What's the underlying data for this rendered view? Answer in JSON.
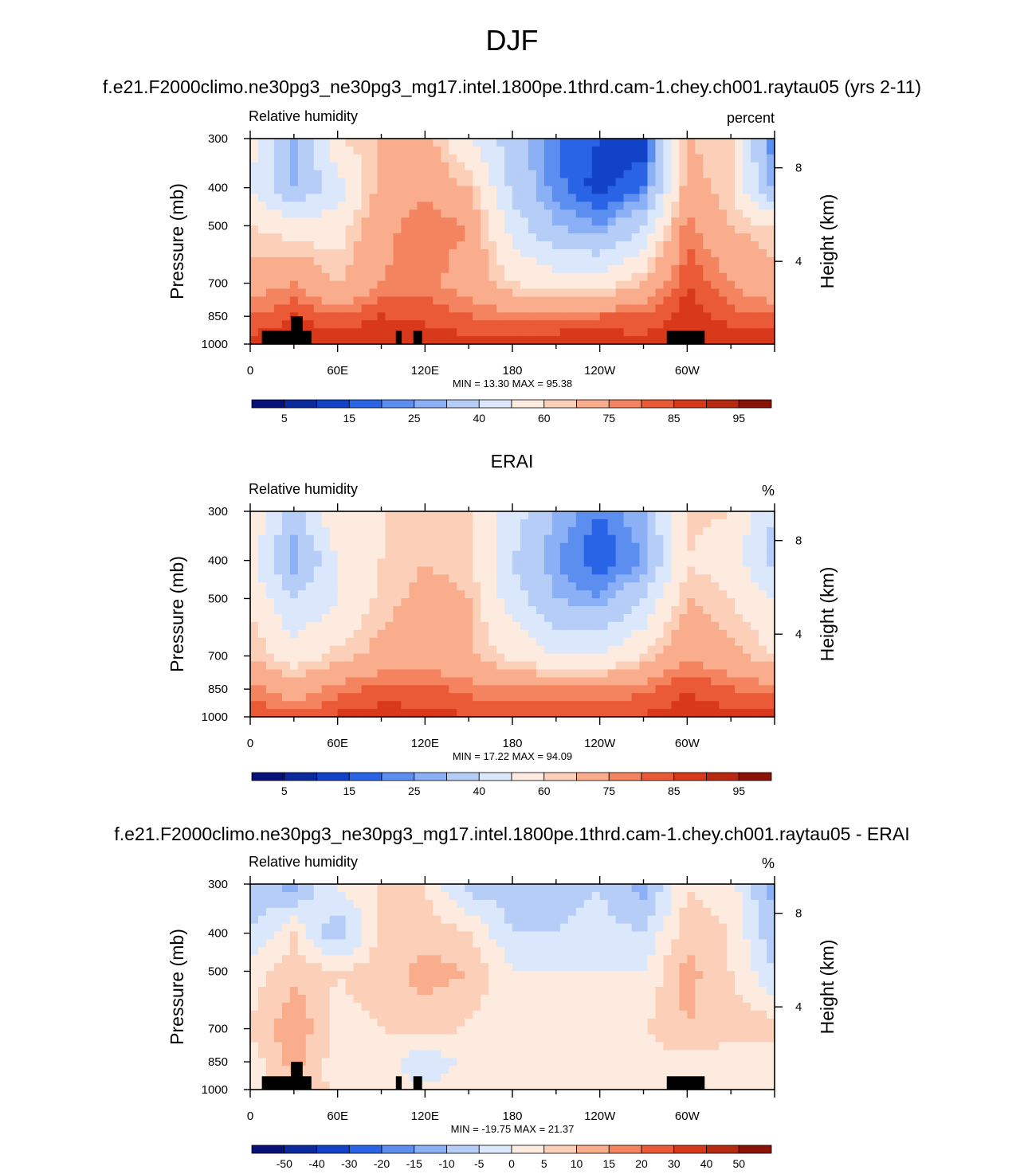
{
  "page": {
    "title": "DJF"
  },
  "panels": [
    {
      "id": "model",
      "heading": "f.e21.F2000climo.ne30pg3_ne30pg3_mg17.intel.1800pe.1thrd.cam-1.chey.ch001.raytau05 (yrs 2-11)",
      "left_label": "Relative humidity",
      "right_label": "percent",
      "stats": "MIN =  13.30  MAX =  95.38",
      "palette": "full",
      "colorbar_labels": [
        "5",
        "15",
        "25",
        "40",
        "60",
        "75",
        "85",
        "95"
      ]
    },
    {
      "id": "obs",
      "heading": "ERAI",
      "left_label": "Relative humidity",
      "right_label": "%",
      "stats": "MIN =  17.22  MAX =  94.09",
      "palette": "full",
      "colorbar_labels": [
        "5",
        "15",
        "25",
        "40",
        "60",
        "75",
        "85",
        "95"
      ]
    },
    {
      "id": "diff",
      "heading": "f.e21.F2000climo.ne30pg3_ne30pg3_mg17.intel.1800pe.1thrd.cam-1.chey.ch001.raytau05 - ERAI",
      "left_label": "Relative humidity",
      "right_label": "%",
      "stats": "MIN = -19.75  MAX =  21.37",
      "palette": "full",
      "colorbar_labels": [
        "-50",
        "-40",
        "-30",
        "-20",
        "-15",
        "-10",
        "-5",
        "0",
        "5",
        "10",
        "15",
        "20",
        "30",
        "40",
        "50"
      ]
    }
  ],
  "axes": {
    "ylabel": "Pressure (mb)",
    "ylabel_right": "Height (km)",
    "pressure_ticks": [
      "300",
      "400",
      "500",
      "700",
      "850",
      "1000"
    ],
    "height_ticks": [
      "8",
      "4"
    ],
    "lon_ticks": [
      "0",
      "60E",
      "120E",
      "180",
      "120W",
      "60W"
    ]
  },
  "colors": {
    "palette_full": [
      "#08107a",
      "#0a2a9e",
      "#1242c8",
      "#2a64e6",
      "#5c8ef0",
      "#8cb0f5",
      "#b6cdf7",
      "#dbe8fb",
      "#fdebe0",
      "#fcd0b8",
      "#f9ad8c",
      "#f4845f",
      "#ea5a36",
      "#d8391a",
      "#b72a10",
      "#8a1206"
    ]
  },
  "chart_data": [
    {
      "type": "heatmap",
      "title": "f.e21.F2000climo.ne30pg3_ne30pg3_mg17.intel.1800pe.1thrd.cam-1.chey.ch001.raytau05 (yrs 2-11)",
      "variable": "Relative humidity",
      "units": "percent",
      "xlabel": "",
      "ylabel": "Pressure (mb)",
      "ylabel_right": "Height (km)",
      "x": [
        0,
        30,
        60,
        90,
        120,
        150,
        180,
        210,
        240,
        270,
        300,
        330,
        360
      ],
      "y": [
        300,
        400,
        500,
        700,
        850,
        1000
      ],
      "values": [
        [
          55,
          25,
          60,
          65,
          70,
          50,
          35,
          20,
          15,
          10,
          65,
          62,
          20
        ],
        [
          50,
          30,
          45,
          68,
          72,
          65,
          38,
          22,
          12,
          20,
          70,
          60,
          25
        ],
        [
          60,
          55,
          55,
          72,
          80,
          75,
          45,
          30,
          25,
          40,
          78,
          65,
          60
        ],
        [
          70,
          75,
          65,
          75,
          78,
          70,
          60,
          55,
          55,
          65,
          85,
          75,
          68
        ],
        [
          80,
          85,
          80,
          85,
          84,
          80,
          78,
          78,
          80,
          80,
          88,
          82,
          80
        ],
        [
          88,
          90,
          90,
          90,
          88,
          88,
          88,
          90,
          90,
          88,
          90,
          90,
          90
        ]
      ],
      "min": 13.3,
      "max": 95.38,
      "colorbar_labels": [
        5,
        15,
        25,
        40,
        60,
        75,
        85,
        95
      ]
    },
    {
      "type": "heatmap",
      "title": "ERAI",
      "variable": "Relative humidity",
      "units": "%",
      "ylabel": "Pressure (mb)",
      "ylabel_right": "Height (km)",
      "x": [
        0,
        30,
        60,
        90,
        120,
        150,
        180,
        210,
        240,
        270,
        300,
        330,
        360
      ],
      "y": [
        300,
        400,
        500,
        700,
        850,
        1000
      ],
      "values": [
        [
          60,
          35,
          60,
          60,
          65,
          60,
          45,
          30,
          20,
          30,
          62,
          60,
          40
        ],
        [
          55,
          25,
          50,
          60,
          65,
          62,
          40,
          25,
          15,
          25,
          60,
          55,
          35
        ],
        [
          58,
          40,
          50,
          62,
          68,
          65,
          45,
          30,
          25,
          40,
          65,
          60,
          50
        ],
        [
          65,
          55,
          62,
          68,
          70,
          66,
          58,
          50,
          50,
          60,
          75,
          68,
          60
        ],
        [
          78,
          70,
          78,
          82,
          82,
          78,
          76,
          75,
          76,
          78,
          85,
          80,
          78
        ],
        [
          86,
          82,
          86,
          88,
          86,
          86,
          85,
          86,
          86,
          86,
          88,
          88,
          88
        ]
      ],
      "min": 17.22,
      "max": 94.09,
      "colorbar_labels": [
        5,
        15,
        25,
        40,
        60,
        75,
        85,
        95
      ]
    },
    {
      "type": "heatmap",
      "title": "f.e21.F2000climo.ne30pg3_ne30pg3_mg17.intel.1800pe.1thrd.cam-1.chey.ch001.raytau05 - ERAI",
      "variable": "Relative humidity",
      "units": "%",
      "ylabel": "Pressure (mb)",
      "ylabel_right": "Height (km)",
      "x": [
        0,
        30,
        60,
        90,
        120,
        150,
        180,
        210,
        240,
        270,
        300,
        330,
        360
      ],
      "y": [
        300,
        400,
        500,
        700,
        850,
        1000
      ],
      "values": [
        [
          -8,
          -12,
          2,
          5,
          5,
          -8,
          -8,
          -8,
          -5,
          -12,
          5,
          2,
          -12
        ],
        [
          -5,
          5,
          -10,
          6,
          8,
          5,
          -5,
          -5,
          -3,
          -5,
          8,
          5,
          -10
        ],
        [
          2,
          8,
          5,
          8,
          12,
          10,
          0,
          0,
          0,
          0,
          12,
          5,
          -5
        ],
        [
          5,
          15,
          3,
          5,
          8,
          4,
          2,
          5,
          5,
          5,
          10,
          7,
          8
        ],
        [
          2,
          12,
          2,
          3,
          -5,
          2,
          2,
          3,
          4,
          2,
          3,
          2,
          2
        ],
        [
          2,
          8,
          4,
          2,
          2,
          2,
          3,
          4,
          4,
          2,
          2,
          2,
          2
        ]
      ],
      "min": -19.75,
      "max": 21.37,
      "colorbar_labels": [
        -50,
        -40,
        -30,
        -20,
        -15,
        -10,
        -5,
        0,
        5,
        10,
        15,
        20,
        30,
        40,
        50
      ]
    }
  ]
}
